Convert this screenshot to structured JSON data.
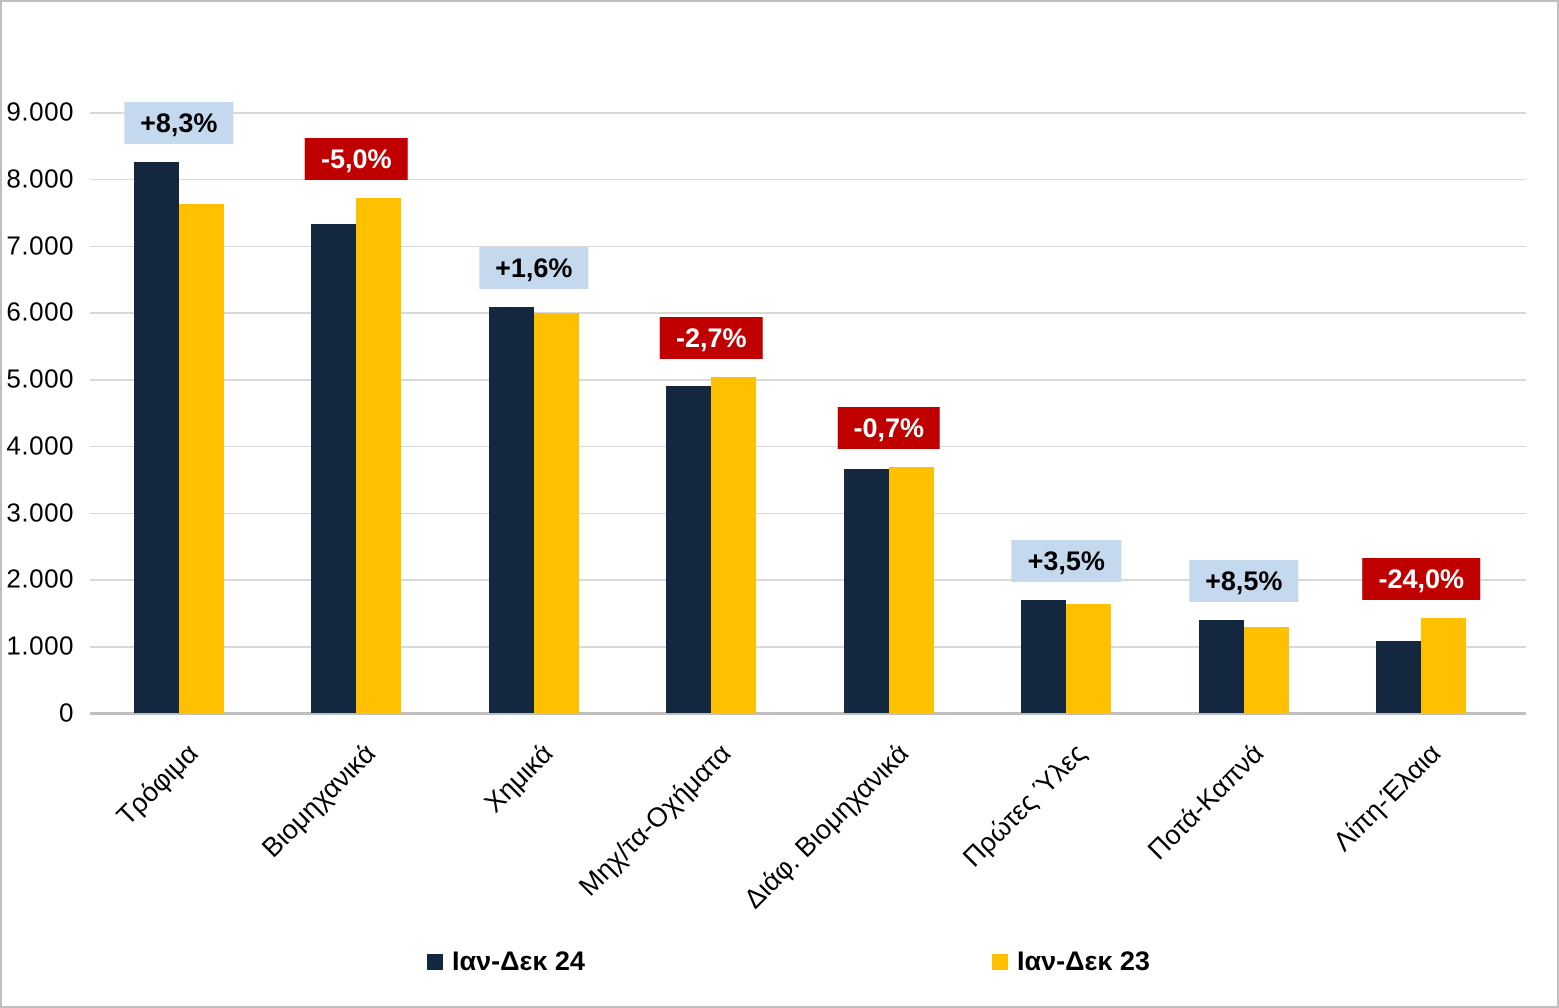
{
  "chart_data": {
    "type": "bar",
    "title": "",
    "categories": [
      "Τρόφιμα",
      "Βιομηχανικά",
      "Χημικά",
      "Μηχ/τα-Οχήματα",
      "Διάφ. Βιομηχανικά",
      "Πρώτες Ύλες",
      "Ποτά-Καπνά",
      "Λίπη-Έλαια"
    ],
    "series": [
      {
        "name": "Ιαν-Δεκ 24",
        "color": "#13283E",
        "values": [
          8250,
          7320,
          6080,
          4900,
          3655,
          1690,
          1390,
          1085
        ]
      },
      {
        "name": "Ιαν-Δεκ 23",
        "color": "#FFC000",
        "values": [
          7618,
          7705,
          5984,
          5035,
          3680,
          1633,
          1281,
          1428
        ]
      }
    ],
    "change_labels": [
      {
        "text": "+8,3%",
        "direction": "up"
      },
      {
        "text": "-5,0%",
        "direction": "down"
      },
      {
        "text": "+1,6%",
        "direction": "up"
      },
      {
        "text": "-2,7%",
        "direction": "down"
      },
      {
        "text": "-0,7%",
        "direction": "down"
      },
      {
        "text": "+3,5%",
        "direction": "up"
      },
      {
        "text": "+8,5%",
        "direction": "up"
      },
      {
        "text": "-24,0%",
        "direction": "down"
      }
    ],
    "y_axis": {
      "min": 0,
      "max": 9000,
      "tick_step": 1000,
      "tick_labels": [
        "0",
        "1.000",
        "2.000",
        "3.000",
        "4.000",
        "5.000",
        "6.000",
        "7.000",
        "8.000",
        "9.000"
      ]
    },
    "grid": true,
    "legend_position": "bottom",
    "colors": {
      "up_label_bg": "#C5D9EE",
      "up_label_text": "#000000",
      "down_label_bg": "#C00000",
      "down_label_text": "#FFFFFF",
      "gridline": "#D9D9D9",
      "axis_line": "#BFBFBF"
    }
  }
}
